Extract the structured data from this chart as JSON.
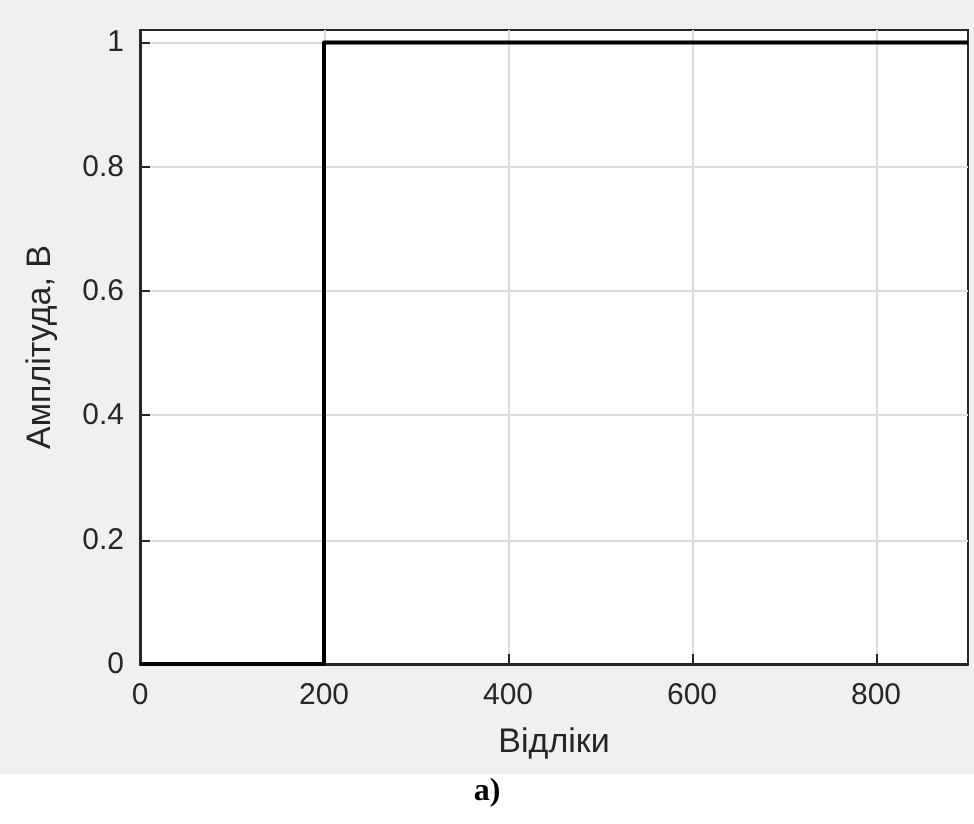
{
  "chart_data": {
    "type": "step",
    "xlabel": "Відліки",
    "ylabel": "Амплітуда, В",
    "x": [
      0,
      200,
      900
    ],
    "series": [
      {
        "color": "#000000",
        "values": [
          0,
          1,
          1
        ]
      }
    ],
    "xlim": [
      0,
      900
    ],
    "xticks": [
      0,
      200,
      400,
      600,
      800
    ],
    "ylim": [
      0,
      1.02
    ],
    "yticks": [
      0,
      0.2,
      0.4,
      0.6,
      0.8,
      1
    ],
    "grid": true,
    "annotations": [
      "а)"
    ]
  }
}
